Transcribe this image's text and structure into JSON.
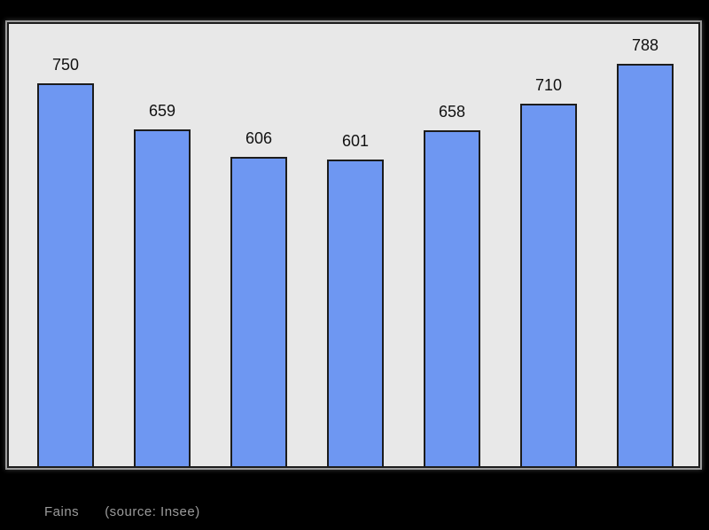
{
  "page": {
    "background": "#000000"
  },
  "chart_data": {
    "type": "bar",
    "title": "Fains",
    "source_note": "(source: Insee)",
    "values": [
      750,
      659,
      606,
      601,
      658,
      710,
      788
    ],
    "bar_value_labels": [
      "750",
      "659",
      "606",
      "601",
      "658",
      "710",
      "788"
    ],
    "ylim": [
      0,
      788
    ],
    "baseline": 0,
    "grid": false,
    "legend": false,
    "x_axis_tick_labels": [],
    "layout_hints": {
      "bars_bottom_aligned": true,
      "value_labels_above_bars": true
    },
    "colors": {
      "bar_fill": "#6e97f2",
      "bar_border": "#1c1c1c",
      "panel_background": "#e8e8e8",
      "panel_border": "#1c1c1c",
      "value_label": "#111111",
      "caption": "#9b9b9b",
      "page_background": "#000000"
    }
  },
  "caption": {
    "title": "Fains",
    "source": "(source: Insee)"
  }
}
